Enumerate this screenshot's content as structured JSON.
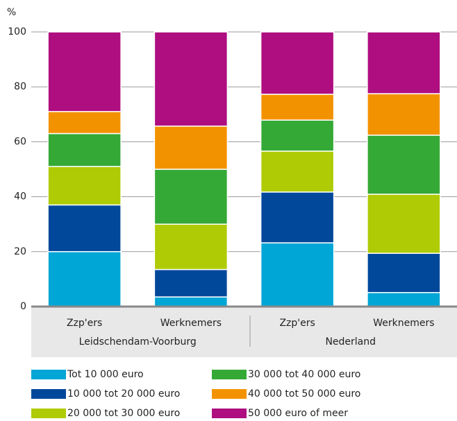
{
  "chart_data": {
    "type": "stacked_bar",
    "y_unit": "%",
    "categories": [
      "Zzp'ers",
      "Werknemers",
      "Zzp'ers",
      "Werknemers"
    ],
    "groups": [
      "Leidschendam-Voorburg",
      "Nederland"
    ],
    "series": [
      {
        "name": "Tot 10 000 euro",
        "color": "#00a6d6",
        "values": [
          20,
          3.5,
          23.2,
          5.1
        ]
      },
      {
        "name": "10 000 tot 20 000 euro",
        "color": "#01489b",
        "values": [
          17,
          10,
          18.5,
          14.3
        ]
      },
      {
        "name": "20 000 tot 30 000 euro",
        "color": "#afcb05",
        "values": [
          14,
          16.5,
          14.9,
          21.5
        ]
      },
      {
        "name": "30 000 tot 40 000 euro",
        "color": "#35a935",
        "values": [
          12,
          20,
          11.3,
          21.5
        ]
      },
      {
        "name": "40 000 tot 50 000 euro",
        "color": "#f39200",
        "values": [
          8,
          15.7,
          9.4,
          15.1
        ]
      },
      {
        "name": "50 000 euro of meer",
        "color": "#af0e80",
        "values": [
          29,
          34.3,
          22.7,
          22.5
        ]
      }
    ],
    "ylim": [
      0,
      100
    ],
    "yticks": [
      0,
      20,
      40,
      60,
      80,
      100
    ],
    "grid": true
  }
}
